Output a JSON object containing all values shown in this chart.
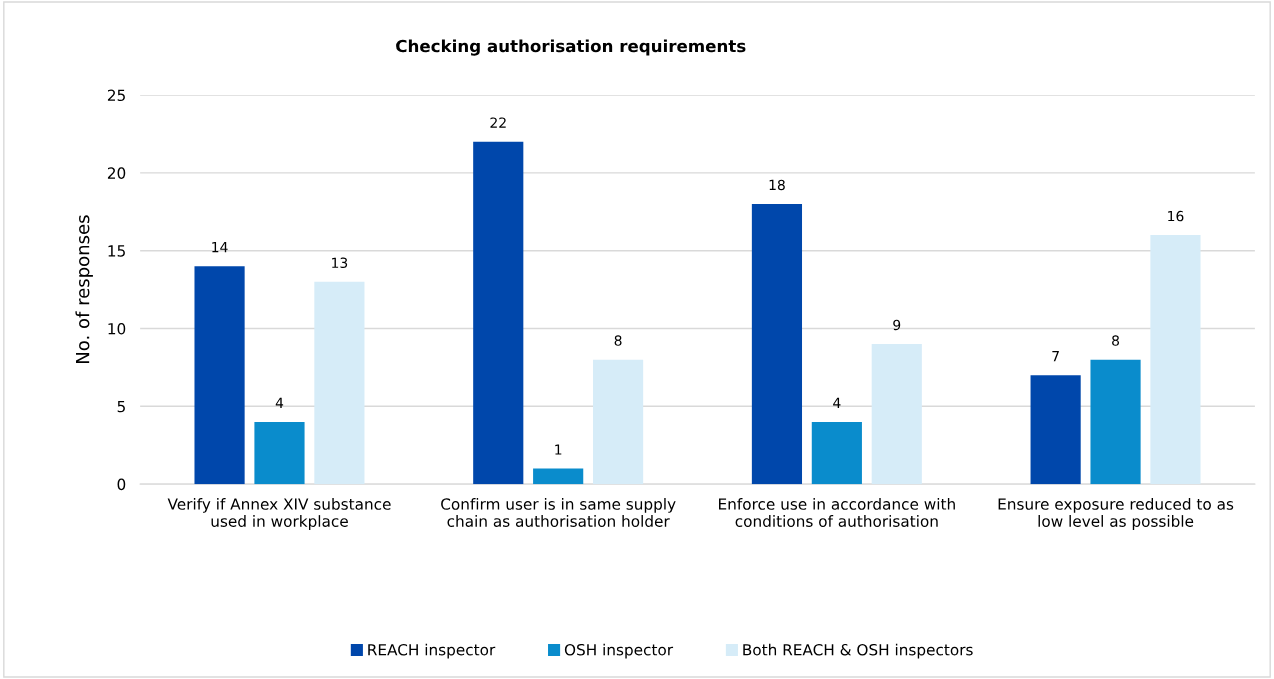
{
  "chart_data": {
    "type": "bar",
    "title": "Checking authorisation requirements",
    "ylabel": "No. of responses",
    "categories": [
      "Verify if Annex XIV substance used in workplace",
      "Confirm user is in same supply chain as authorisation holder",
      "Enforce use in accordance with conditions of authorisation",
      "Ensure exposure reduced to as low level as possible"
    ],
    "series": [
      {
        "name": "REACH inspector",
        "color": "#0047ab",
        "values": [
          14,
          22,
          18,
          7
        ]
      },
      {
        "name": "OSH inspector",
        "color": "#0a8ccc",
        "values": [
          4,
          1,
          4,
          8
        ]
      },
      {
        "name": "Both REACH & OSH inspectors",
        "color": "#d6ecf8",
        "values": [
          13,
          8,
          9,
          16
        ]
      }
    ],
    "ylim": [
      0,
      25
    ],
    "yticks": [
      0,
      5,
      10,
      15,
      20,
      25
    ],
    "grid": "y",
    "legend": "bottom",
    "data_labels": true
  }
}
